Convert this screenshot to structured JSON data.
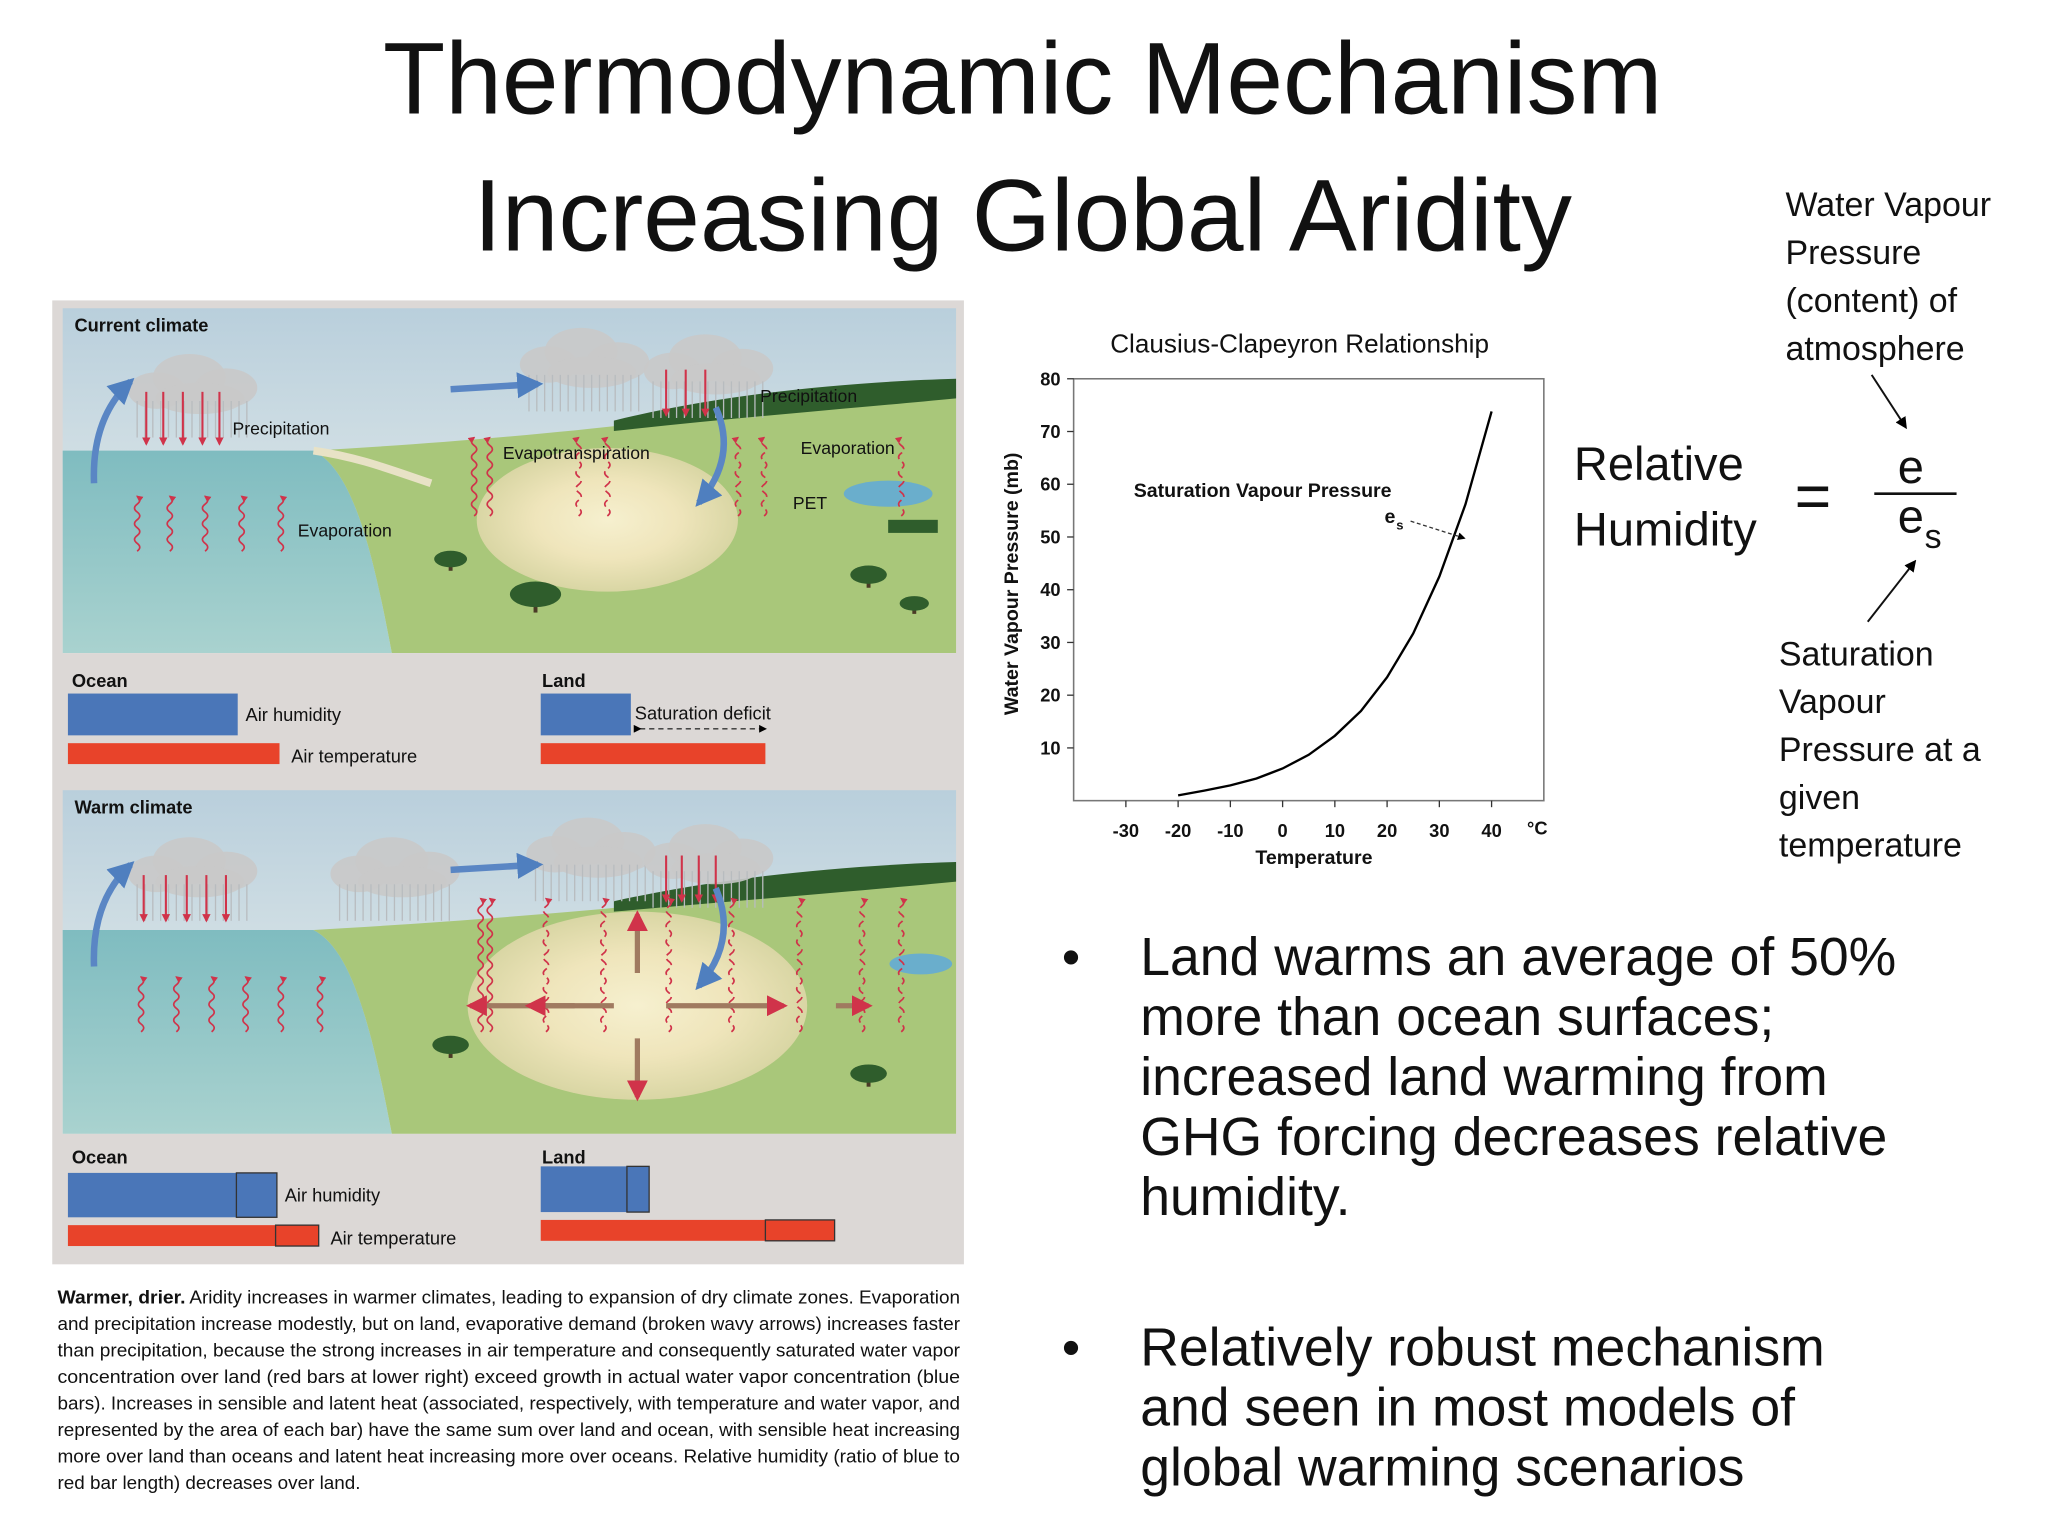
{
  "title": [
    "Thermodynamic Mechanism",
    "Increasing Global Aridity"
  ],
  "figure": {
    "current": {
      "heading": "Current climate",
      "labels": [
        "Precipitation",
        "Evaporation",
        "Evapotranspiration",
        "Precipitation",
        "Evaporation",
        "PET"
      ],
      "ocean": "Ocean",
      "land": "Land",
      "air_humidity": "Air humidity",
      "air_temperature": "Air temperature",
      "saturation_deficit": "Saturation deficit"
    },
    "warm": {
      "heading": "Warm climate",
      "ocean": "Ocean",
      "land": "Land",
      "air_humidity": "Air humidity",
      "air_temperature": "Air temperature"
    }
  },
  "caption": {
    "lead": "Warmer, drier.",
    "lines": [
      "Aridity increases in warmer climates, leading to expansion of dry climate zones. Evaporation",
      "and precipitation increase modestly, but on land, evaporative demand (broken wavy arrows) increases faster",
      "than precipitation, because the strong increases in air temperature and consequently saturated water vapor",
      "concentration over land (red bars at lower right) exceed growth in actual water vapor concentration (blue",
      "bars). Increases in sensible and latent heat (associated, respectively, with temperature and water vapor, and",
      "represented by the area of each bar) have the same sum over land and ocean, with sensible heat increasing",
      "more over land than oceans and latent heat increasing more over oceans. Relative humidity (ratio of blue to",
      "red bar length) decreases over land."
    ]
  },
  "chart_data": {
    "type": "line",
    "title": "Clausius-Clapeyron Relationship",
    "x_label": "Temperature",
    "x_unit": "°C",
    "y_label": "Water Vapour Pressure (mb)",
    "annotation": "Saturation Vapour Pressure",
    "annotation_symbol": "e",
    "annotation_subscript": "s",
    "x": [
      -20,
      -15,
      -10,
      -5,
      0,
      5,
      10,
      15,
      20,
      25,
      30,
      35,
      40
    ],
    "series": [
      {
        "name": "Saturation Vapour Pressure",
        "color": "#000000",
        "values": [
          1.0,
          1.9,
          2.9,
          4.2,
          6.1,
          8.7,
          12.3,
          17.0,
          23.4,
          31.7,
          42.5,
          56.2,
          73.8
        ]
      }
    ],
    "xlim": [
      -40,
      50
    ],
    "ylim": [
      0,
      80
    ],
    "xticks": [
      -30,
      -20,
      -10,
      0,
      10,
      20,
      30,
      40
    ],
    "yticks": [
      10,
      20,
      30,
      40,
      50,
      60,
      70,
      80
    ],
    "grid": false
  },
  "equation": {
    "lhs": [
      "Relative",
      "Humidity"
    ],
    "operator": "=",
    "numerator": "e",
    "denominator": "e",
    "subscript": "s"
  },
  "notes": {
    "top": [
      "Water Vapour",
      "Pressure",
      "(content) of",
      "atmosphere"
    ],
    "bottom": [
      "Saturation",
      "Vapour",
      "Pressure at a",
      "given",
      "temperature"
    ]
  },
  "bullets": [
    [
      "Land warms an average of 50%",
      "more than ocean surfaces;",
      "increased land warming from",
      "GHG forcing decreases relative",
      "humidity."
    ],
    [
      "Relatively robust mechanism",
      "and seen in most models of",
      "global warming scenarios"
    ]
  ]
}
